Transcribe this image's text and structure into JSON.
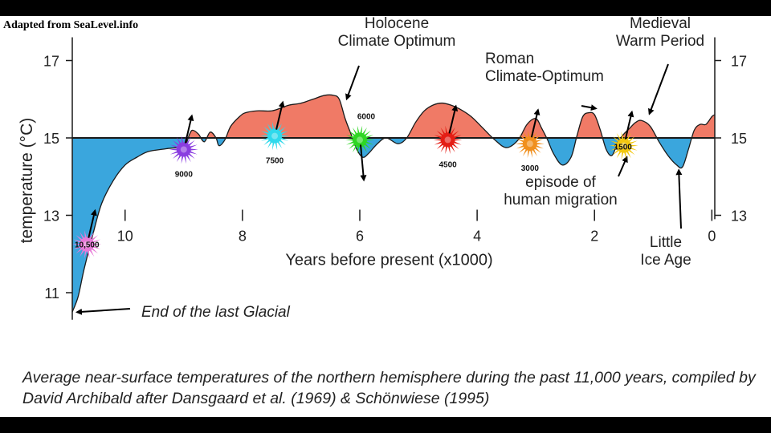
{
  "credit": "Adapted from SeaLevel.info",
  "caption": "Average near-surface temperatures of the northern hemisphere during the past 11,000 years, compiled by David Archibald after Dansgaard et al. (1969) & Schönwiese (1995)",
  "colors": {
    "warm": "#f07a66",
    "cold": "#3aa6dd",
    "line": "#1a1a1a"
  },
  "chart_data": {
    "type": "area",
    "title": "",
    "xlabel": "Years before present (x1000)",
    "ylabel": "temperature (°C)",
    "xlim": [
      10.9,
      -0.05
    ],
    "ylim": [
      10.3,
      17.6
    ],
    "baseline": 15,
    "xticks": [
      10,
      8,
      6,
      4,
      2,
      0
    ],
    "yticks": [
      11,
      13,
      15,
      17
    ],
    "grid": false,
    "series": [
      {
        "x": [
          10.9,
          10.8,
          10.7,
          10.55,
          10.4,
          10.2,
          10.0,
          9.8,
          9.6,
          9.3,
          9.0,
          8.9,
          8.85,
          8.75,
          8.65,
          8.55,
          8.45,
          8.4,
          8.3,
          8.2,
          8.05,
          7.95,
          7.75,
          7.5,
          7.3,
          7.2,
          7.0,
          6.8,
          6.6,
          6.45,
          6.35,
          6.25,
          6.15,
          6.05,
          5.95,
          5.85,
          5.7,
          5.55,
          5.35,
          5.2,
          5.05,
          4.9,
          4.75,
          4.6,
          4.45,
          4.3,
          4.1,
          3.9,
          3.7,
          3.5,
          3.3,
          3.15,
          3.0,
          2.9,
          2.8,
          2.7,
          2.55,
          2.4,
          2.3,
          2.2,
          2.1,
          2.0,
          1.9,
          1.8,
          1.7,
          1.6,
          1.5,
          1.4,
          1.3,
          1.2,
          1.05,
          0.9,
          0.75,
          0.6,
          0.5,
          0.4,
          0.3,
          0.2,
          0.1,
          0.0,
          -0.05
        ],
        "y": [
          10.5,
          10.9,
          11.6,
          12.5,
          13.3,
          13.9,
          14.3,
          14.5,
          14.65,
          14.72,
          14.8,
          15.1,
          15.2,
          15.1,
          14.9,
          15.15,
          15.0,
          14.8,
          14.95,
          15.3,
          15.55,
          15.65,
          15.7,
          15.7,
          15.8,
          15.85,
          15.9,
          16.0,
          16.1,
          16.1,
          16.0,
          15.5,
          15.1,
          14.7,
          14.5,
          14.6,
          14.85,
          15.0,
          14.85,
          15.0,
          15.4,
          15.7,
          15.85,
          15.9,
          15.85,
          15.75,
          15.55,
          15.25,
          14.95,
          14.75,
          14.95,
          15.35,
          15.5,
          15.25,
          14.95,
          14.6,
          14.3,
          14.5,
          15.05,
          15.55,
          15.65,
          15.6,
          15.2,
          14.7,
          14.55,
          14.9,
          15.1,
          15.25,
          15.4,
          15.45,
          15.3,
          14.9,
          14.55,
          14.3,
          14.25,
          14.7,
          15.2,
          15.35,
          15.35,
          15.55,
          15.6
        ]
      }
    ],
    "annotations": [
      {
        "text": "Holocene\nClimate Optimum",
        "x": 6.25,
        "y": 16.05
      },
      {
        "text": "Roman\nClimate-Optimum",
        "x": 1.95,
        "y": 15.7
      },
      {
        "text": "Medieval\nWarm Period",
        "x": 1.05,
        "y": 15.5
      },
      {
        "text": "episode of\nhuman migration",
        "x": 2.7,
        "y": 14.4
      },
      {
        "text": "Little\nIce Age",
        "x": 0.55,
        "y": 14.25
      },
      {
        "text": "End of the last Glacial",
        "x": 10.9,
        "y": 10.6
      }
    ],
    "markers": [
      {
        "label": "10,500",
        "x": 10.65,
        "y": 12.25,
        "color": "#e87ad8",
        "arrow": "up"
      },
      {
        "label": "9000",
        "x": 9.0,
        "y": 14.7,
        "color": "#8a3de0",
        "arrow": "up"
      },
      {
        "label": "7500",
        "x": 7.45,
        "y": 15.05,
        "color": "#2fd9ec",
        "arrow": "up"
      },
      {
        "label": "6000",
        "x": 6.0,
        "y": 14.95,
        "color": "#2ed624",
        "arrow": "down"
      },
      {
        "label": "4500",
        "x": 4.5,
        "y": 14.95,
        "color": "#e41d15",
        "arrow": "up"
      },
      {
        "label": "3000",
        "x": 3.1,
        "y": 14.85,
        "color": "#f08f1d",
        "arrow": "up"
      },
      {
        "label": "1500",
        "x": 1.5,
        "y": 14.8,
        "color": "#f2c70f",
        "arrow": "up"
      }
    ]
  }
}
